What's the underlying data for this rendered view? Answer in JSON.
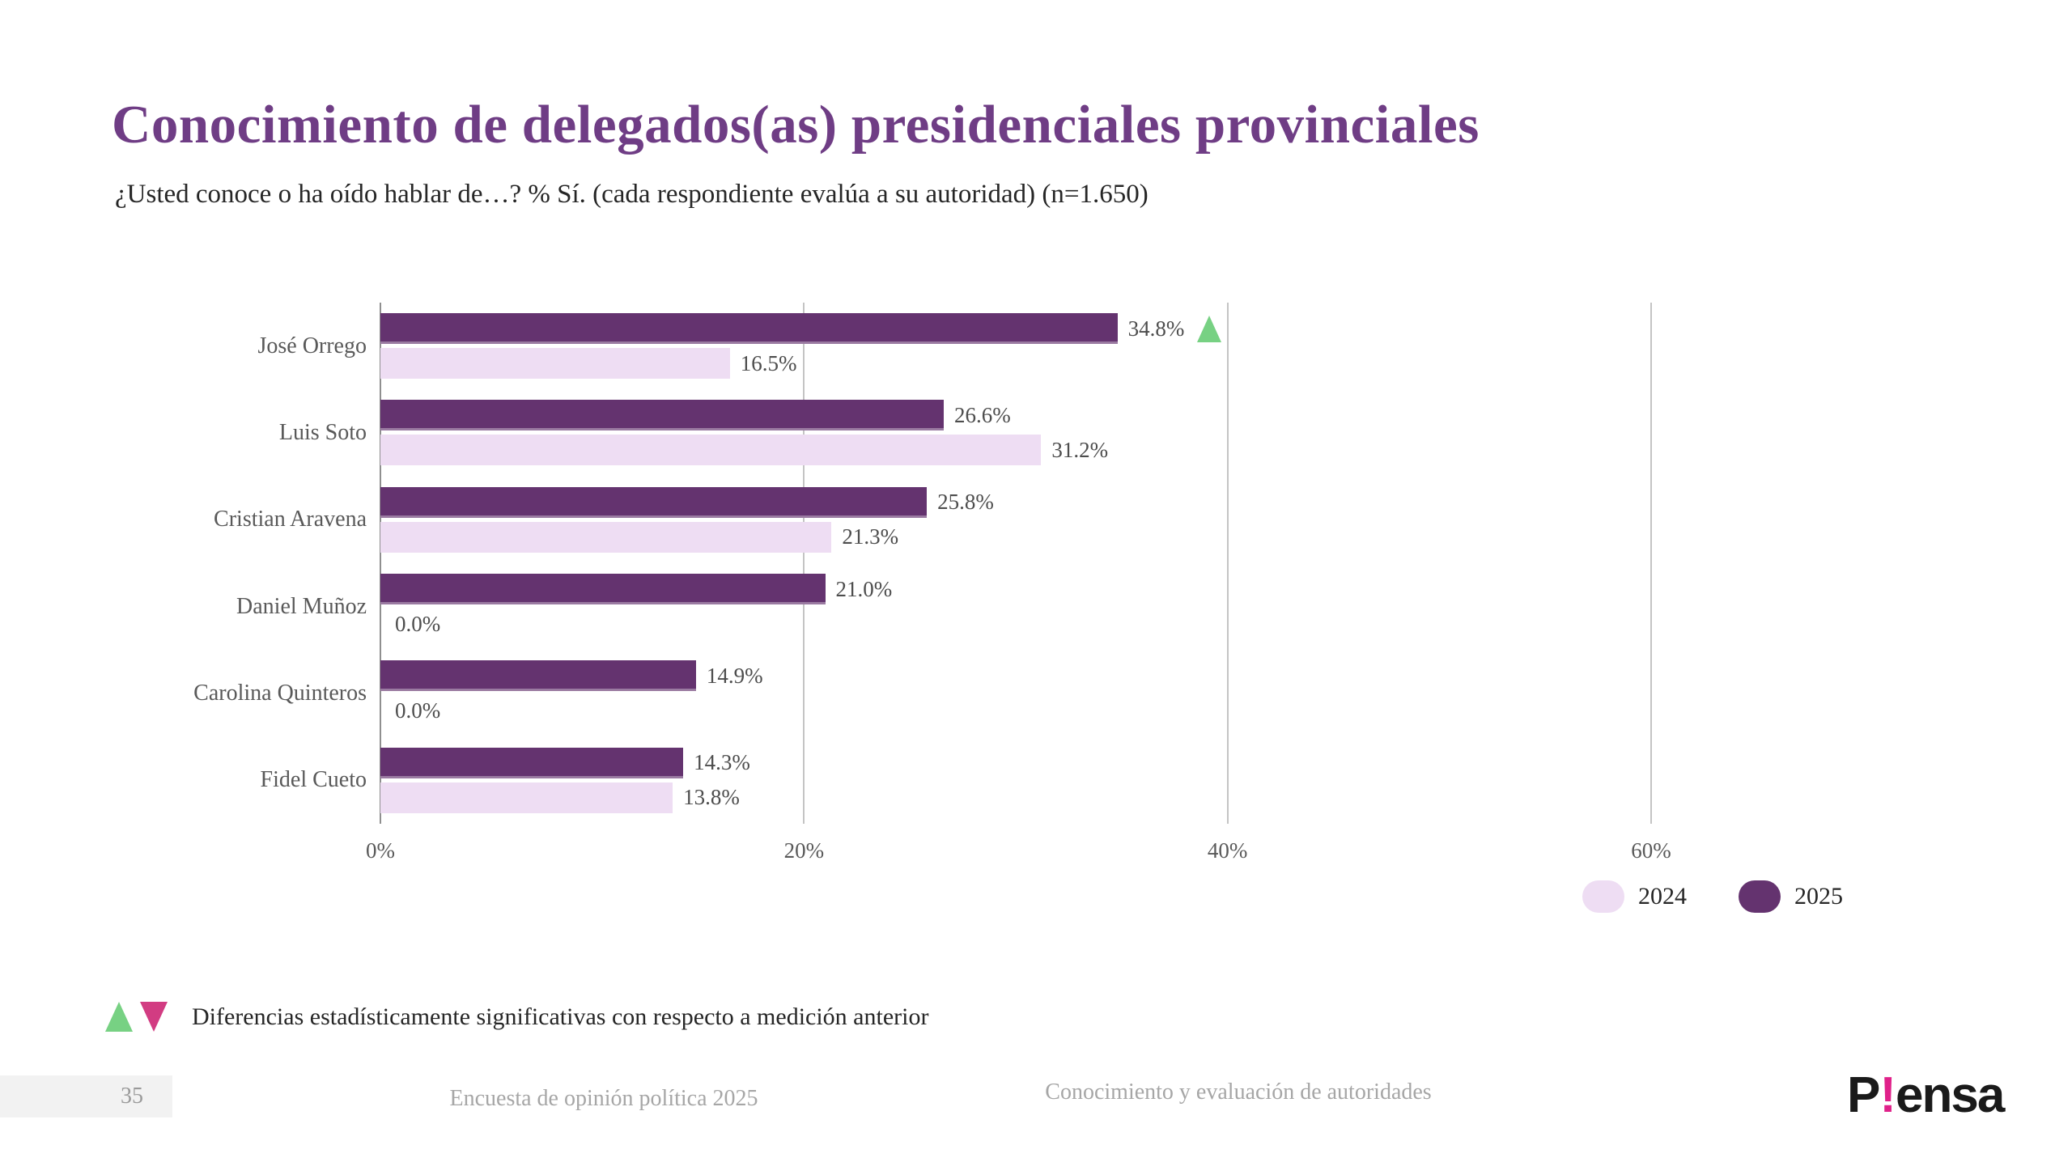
{
  "colors": {
    "title": "#6f3d85",
    "bar_2025": "#64336f",
    "bar_2024": "#eeddf3",
    "sig_up": "#77d183",
    "sig_down": "#d23c82",
    "grid": "#c4c4c4",
    "axis": "#8f8f8f",
    "logo_pink": "#e0218a"
  },
  "title": "Conocimiento de delegados(as) presidenciales provinciales",
  "subtitle": "¿Usted conoce o ha oído hablar de…? % Sí. (cada respondiente evalúa a su autoridad) (n=1.650)",
  "chart_data": {
    "type": "bar",
    "orientation": "horizontal",
    "title": "Conocimiento de delegados(as) presidenciales provinciales",
    "categories": [
      "José Orrego",
      "Luis Soto",
      "Cristian Aravena",
      "Daniel Muñoz",
      "Carolina Quinteros",
      "Fidel Cueto"
    ],
    "series": [
      {
        "name": "2025",
        "color": "#64336f",
        "values": [
          34.8,
          26.6,
          25.8,
          21.0,
          14.9,
          14.3
        ],
        "labels": [
          "34.8%",
          "26.6%",
          "25.8%",
          "21.0%",
          "14.9%",
          "14.3%"
        ],
        "significant_vs_previous": [
          "up",
          null,
          null,
          null,
          null,
          null
        ]
      },
      {
        "name": "2024",
        "color": "#eeddf3",
        "values": [
          16.5,
          31.2,
          21.3,
          0.0,
          0.0,
          13.8
        ],
        "labels": [
          "16.5%",
          "31.2%",
          "21.3%",
          "0.0%",
          "0.0%",
          "13.8%"
        ],
        "significant_vs_previous": [
          null,
          null,
          null,
          null,
          null,
          null
        ]
      }
    ],
    "x_ticks": [
      "0%",
      "20%",
      "40%",
      "60%"
    ],
    "xlim": [
      0,
      60
    ],
    "grid": true,
    "legend_position": "bottom-right"
  },
  "legend": {
    "items": [
      {
        "label": "2024",
        "color": "#eeddf3"
      },
      {
        "label": "2025",
        "color": "#64336f"
      }
    ]
  },
  "footnote": {
    "up_icon": "triangle-up",
    "down_icon": "triangle-down",
    "text": "Diferencias estadísticamente significativas con respecto a medición anterior"
  },
  "footer": {
    "page_number": "35",
    "survey_title": "Encuesta de opinión política 2025",
    "section_title": "Conocimiento y evaluación de autoridades",
    "logo": {
      "pre": "P",
      "mark": "!",
      "post": "ensa"
    }
  }
}
